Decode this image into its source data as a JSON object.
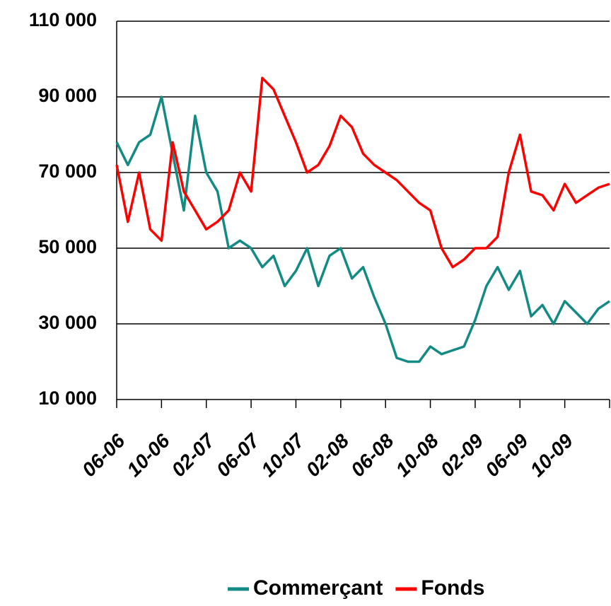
{
  "chart_data": {
    "type": "line",
    "categories": [
      "06-06",
      null,
      null,
      null,
      "10-06",
      null,
      null,
      null,
      "02-07",
      null,
      null,
      null,
      "06-07",
      null,
      null,
      null,
      "10-07",
      null,
      null,
      null,
      "02-08",
      null,
      null,
      null,
      "06-08",
      null,
      null,
      null,
      "10-08",
      null,
      null,
      null,
      "02-09",
      null,
      null,
      null,
      "06-09",
      null,
      null,
      null,
      "10-09",
      null,
      null,
      null,
      null
    ],
    "series": [
      {
        "name": "Commerçant",
        "color": "#138a84",
        "values": [
          78000,
          72000,
          78000,
          80000,
          90000,
          75000,
          60000,
          85000,
          70000,
          65000,
          50000,
          52000,
          50000,
          45000,
          48000,
          40000,
          44000,
          50000,
          40000,
          48000,
          50000,
          42000,
          45000,
          37000,
          30000,
          21000,
          20000,
          20000,
          24000,
          22000,
          23000,
          24000,
          31000,
          40000,
          45000,
          39000,
          44000,
          32000,
          35000,
          30000,
          36000,
          33000,
          30000,
          34000,
          36000
        ]
      },
      {
        "name": "Fonds",
        "color": "#ff0000",
        "values": [
          72000,
          57000,
          70000,
          55000,
          52000,
          78000,
          65000,
          60000,
          55000,
          57000,
          60000,
          70000,
          65000,
          95000,
          92000,
          85000,
          78000,
          70000,
          72000,
          77000,
          85000,
          82000,
          75000,
          72000,
          70000,
          68000,
          65000,
          62000,
          60000,
          50000,
          45000,
          47000,
          50000,
          50000,
          53000,
          70000,
          80000,
          65000,
          64000,
          60000,
          67000,
          62000,
          64000,
          66000,
          67000
        ]
      }
    ],
    "ylim": [
      10000,
      110000
    ],
    "yticks": [
      {
        "value": 10000,
        "label": "10 000"
      },
      {
        "value": 30000,
        "label": "30 000"
      },
      {
        "value": 50000,
        "label": "50 000"
      },
      {
        "value": 70000,
        "label": "70 000"
      },
      {
        "value": 90000,
        "label": "90 000"
      },
      {
        "value": 110000,
        "label": "110 000"
      }
    ],
    "grid": true,
    "legend": "bottom"
  }
}
